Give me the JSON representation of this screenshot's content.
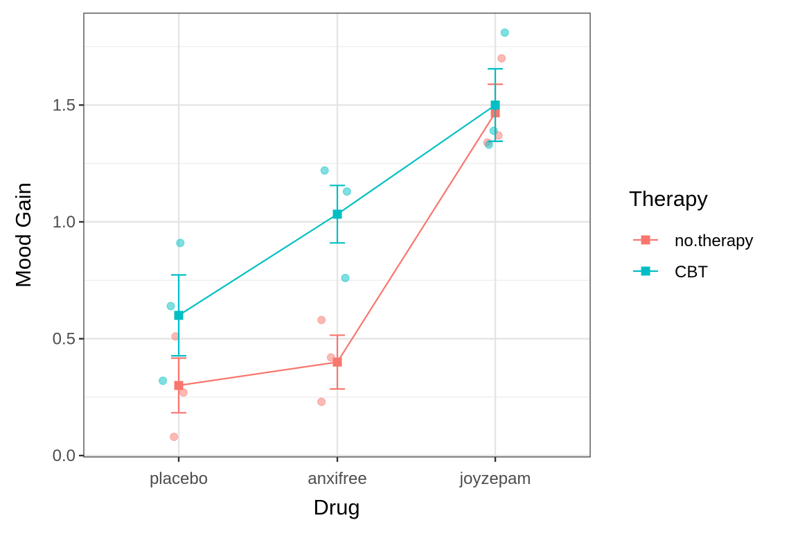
{
  "chart_data": {
    "type": "line",
    "title": "",
    "xlabel": "Drug",
    "ylabel": "Mood Gain",
    "categories": [
      "placebo",
      "anxifree",
      "joyzepam"
    ],
    "ylim": [
      0,
      1.9
    ],
    "yticks": [
      0.0,
      0.5,
      1.0,
      1.5
    ],
    "ytick_labels": [
      "0.0",
      "0.5",
      "1.0",
      "1.5"
    ],
    "grid": true,
    "legend": {
      "title": "Therapy",
      "placement": "right"
    },
    "series": [
      {
        "name": "no.therapy",
        "color": "#F8766D",
        "means": [
          0.3,
          0.4,
          1.467
        ],
        "ci_low": [
          0.183,
          0.285,
          1.345
        ],
        "ci_high": [
          0.417,
          0.515,
          1.589
        ],
        "points": [
          [
            0.51,
            0.27,
            0.08
          ],
          [
            0.58,
            0.42,
            0.23
          ],
          [
            1.7,
            1.37,
            1.34
          ]
        ],
        "jitter": [
          [
            -0.02,
            0.03,
            -0.03
          ],
          [
            -0.1,
            -0.04,
            -0.1
          ],
          [
            0.04,
            0.02,
            -0.05
          ]
        ]
      },
      {
        "name": "CBT",
        "color": "#00BFC4",
        "means": [
          0.6,
          1.033,
          1.5
        ],
        "ci_low": [
          0.427,
          0.91,
          1.345
        ],
        "ci_high": [
          0.773,
          1.156,
          1.655
        ],
        "points": [
          [
            0.91,
            0.64,
            0.32
          ],
          [
            1.22,
            1.13,
            0.76
          ],
          [
            1.81,
            1.39,
            1.33
          ]
        ],
        "jitter": [
          [
            0.01,
            -0.05,
            -0.1
          ],
          [
            -0.08,
            0.06,
            0.05
          ],
          [
            0.06,
            -0.01,
            -0.04
          ]
        ]
      }
    ]
  }
}
